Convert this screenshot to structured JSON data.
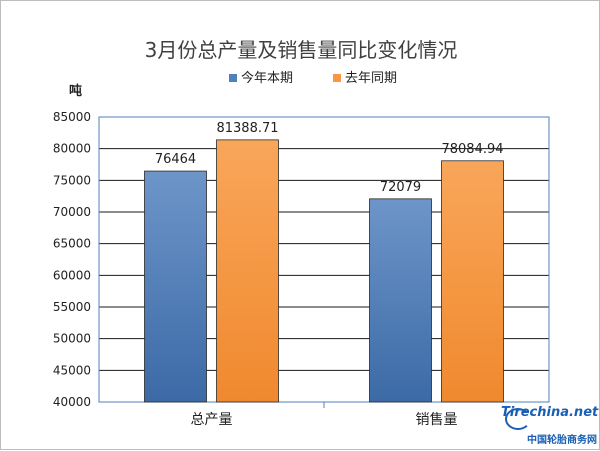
{
  "chart_data": {
    "type": "bar",
    "title": "3月份总产量及销售量同比变化情况",
    "ylabel": "吨",
    "xlabel": "",
    "categories": [
      "总产量",
      "销售量"
    ],
    "series": [
      {
        "name": "今年本期",
        "values": [
          76464,
          72079
        ],
        "labels": [
          "76464",
          "72079"
        ],
        "color": "#4f81bd"
      },
      {
        "name": "去年同期",
        "values": [
          81388.71,
          78084.94
        ],
        "labels": [
          "81388.71",
          "78084.94"
        ],
        "color": "#f79646"
      }
    ],
    "ylim": [
      40000,
      85000
    ],
    "yticks": [
      "85000",
      "80000",
      "75000",
      "70000",
      "65000",
      "60000",
      "55000",
      "50000",
      "45000",
      "40000"
    ],
    "grid": true,
    "legend": "top"
  },
  "watermark": {
    "brand": "Tirechina.net",
    "tagline": "中国轮胎商务网"
  }
}
